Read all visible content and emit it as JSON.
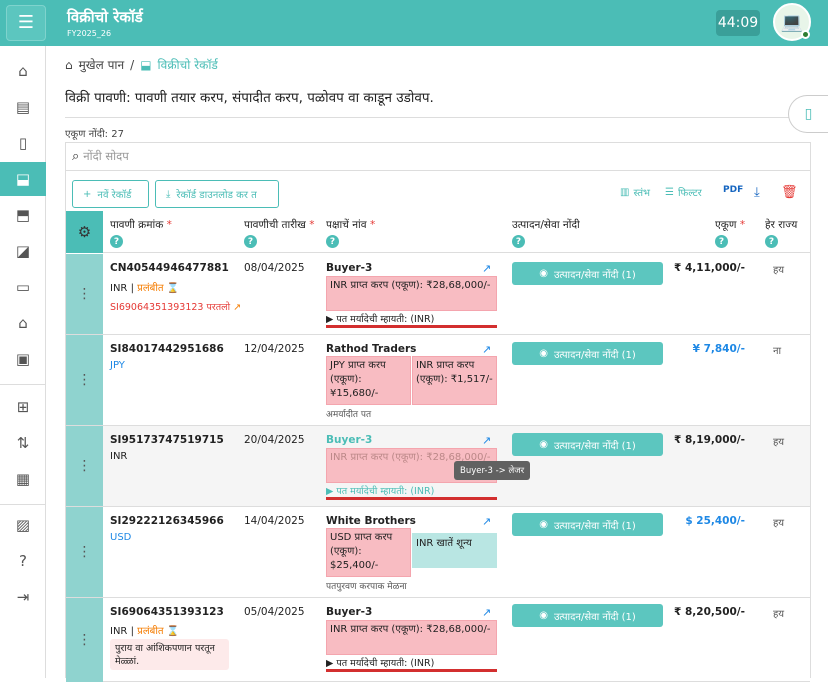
{
  "app": {
    "title": "विक्रीचो रेकॉर्ड",
    "subtitle": "FY2025_26",
    "timer": "44:09"
  },
  "breadcrumb": {
    "home": "मुखेल पान",
    "separator": "/",
    "current": "विक्रीचो रेकॉर्ड"
  },
  "page": {
    "description": "विक्री पावणी: पावणी तयार करप, संपादीत करप, पळोवप वा काडून उडोवप.",
    "count_label": "एकूण नोंदी: 27"
  },
  "search": {
    "placeholder": "नोंदी सोदप"
  },
  "toolbar": {
    "new_record": "नवें रेकॉर्ड",
    "download_records": "रेकॉर्ड डाउनलोड कर त",
    "columns": "स्तंभ",
    "filter": "फिल्टर"
  },
  "columns": {
    "invoice_no": "पावणी क्रमांक",
    "invoice_date": "पावणीची तारीख",
    "party_name": "पक्षाचें नांव",
    "items": "उत्पादन/सेवा नोंदी",
    "total": "एकूण",
    "other_state": "हेर राज्य"
  },
  "product_button_label": "उत्पादन/सेवा नोंदी (1)",
  "rows": [
    {
      "invoice_no": "CN40544946477881",
      "currency": "INR",
      "separator": "|",
      "status": "प्रलंबीत",
      "ref": "SI69064351393123",
      "ref_label": "परतलो",
      "date": "08/04/2025",
      "party": "Buyer-3",
      "box_text": "INR प्राप्त करप (एकूण): ₹28,68,000/-",
      "limit_text": "पत मर्यादेची म्हायती: (INR)",
      "total": "₹ 4,11,000/-",
      "other_state": "हय"
    },
    {
      "invoice_no": "SI84017442951686",
      "currency": "JPY",
      "date": "12/04/2025",
      "party": "Rathod Traders",
      "box1": "JPY प्राप्त करप (एकूण): ¥15,680/-",
      "box2": "INR प्राप्त करप (एकूण): ₹1,517/-",
      "limit_text": "अमर्यादीत पत",
      "total": "¥ 7,840/-",
      "other_state": "ना"
    },
    {
      "invoice_no": "SI95173747519715",
      "currency": "INR",
      "date": "20/04/2025",
      "party": "Buyer-3",
      "box_text": "INR प्राप्त करप (एकूण): ₹28,68,000/-",
      "limit_text": "पत मर्यादेची म्हायती: (INR)",
      "tooltip": "Buyer-3 -> लेजर",
      "total": "₹ 8,19,000/-",
      "other_state": "हय"
    },
    {
      "invoice_no": "SI29222126345966",
      "currency": "USD",
      "date": "14/04/2025",
      "party": "White Brothers",
      "box1": "USD प्राप्त करप (एकूण): $25,400/-",
      "box2": "INR खातें शून्य",
      "limit_text": "पतपुरवण करपाक मेळना",
      "total": "$ 25,400/-",
      "other_state": "हय"
    },
    {
      "invoice_no": "SI69064351393123",
      "currency": "INR",
      "separator": "|",
      "status": "प्रलंबीत",
      "note": "पुराय वा आंशिकपणान परतून मेळ्ळां.",
      "date": "05/04/2025",
      "party": "Buyer-3",
      "box_text": "INR प्राप्त करप (एकूण): ₹28,68,000/-",
      "limit_text": "पत मर्यादेची म्हायती: (INR)",
      "total": "₹ 8,20,500/-",
      "other_state": "हय"
    }
  ],
  "colors": {
    "accent": "#4bbdb6",
    "pink": "#f8bcc2",
    "cyan": "#b9e6e3",
    "red": "#d32f2f",
    "blue": "#1e88e5"
  }
}
